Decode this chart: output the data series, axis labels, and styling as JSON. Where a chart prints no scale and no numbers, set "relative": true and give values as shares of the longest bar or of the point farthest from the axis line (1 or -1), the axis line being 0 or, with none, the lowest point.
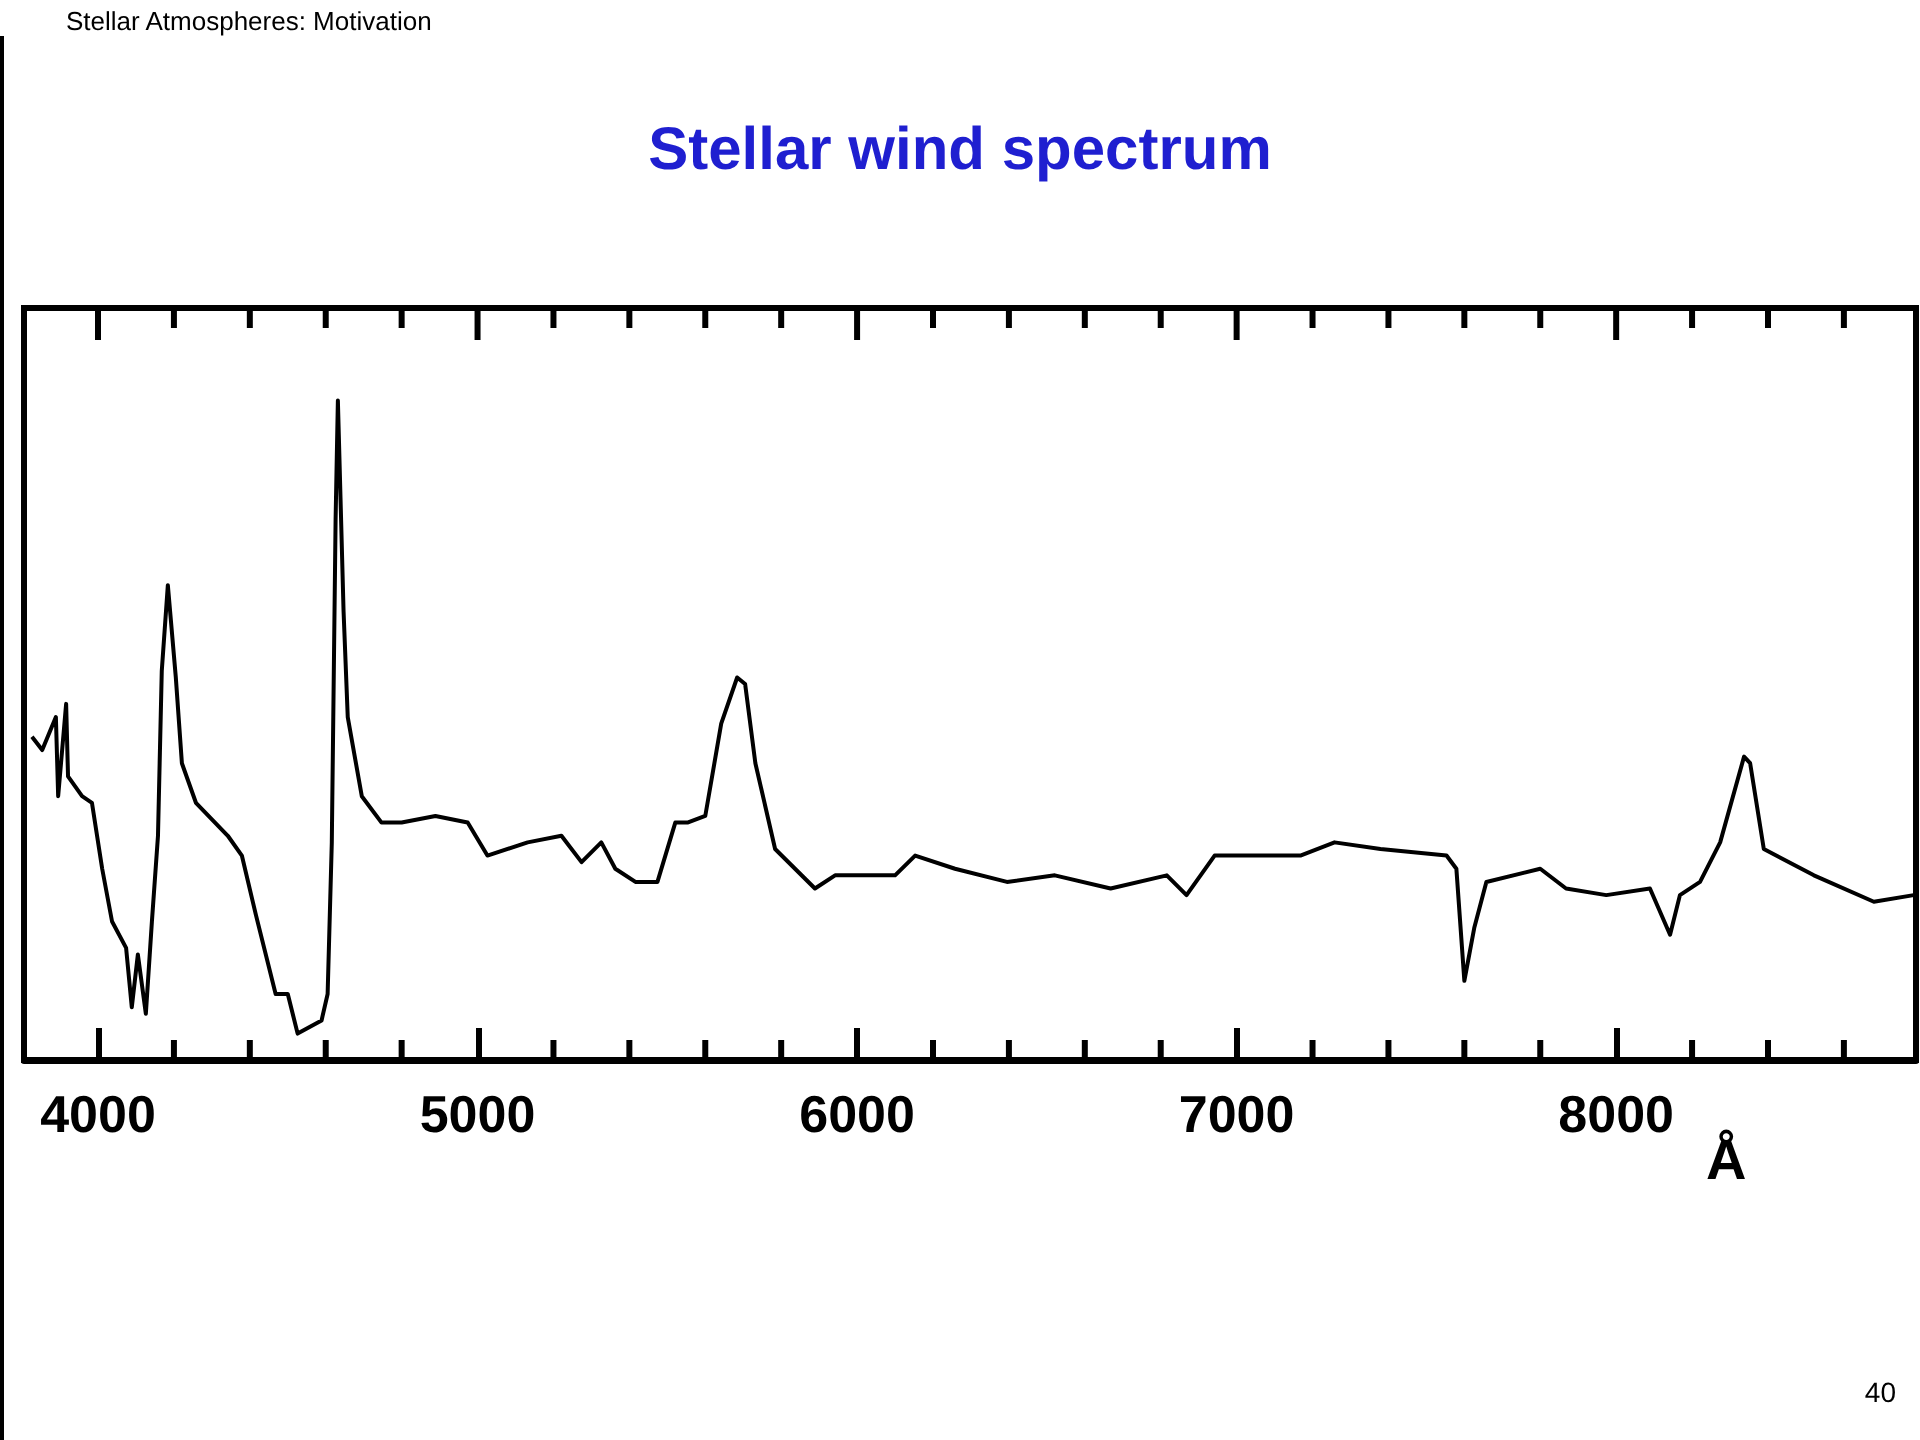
{
  "chart_data": {
    "type": "line",
    "title": "Stellar wind spectrum",
    "xlabel": "Å",
    "relative": true,
    "marker": "none",
    "line_style": "solid",
    "grid": false,
    "annotations": [
      "Stellar Atmospheres:   Motivation",
      "40"
    ],
    "xlim": [
      3805,
      8790
    ],
    "xticks": [
      4000,
      {
        "value": 4200,
        "label": null
      },
      {
        "value": 4400,
        "label": null
      },
      {
        "value": 4600,
        "label": null
      },
      {
        "value": 4800,
        "label": null
      },
      5000,
      {
        "value": 5200,
        "label": null
      },
      {
        "value": 5400,
        "label": null
      },
      {
        "value": 5600,
        "label": null
      },
      {
        "value": 5800,
        "label": null
      },
      6000,
      {
        "value": 6200,
        "label": null
      },
      {
        "value": 6400,
        "label": null
      },
      {
        "value": 6600,
        "label": null
      },
      {
        "value": 6800,
        "label": null
      },
      7000,
      {
        "value": 7200,
        "label": null
      },
      {
        "value": 7400,
        "label": null
      },
      {
        "value": 7600,
        "label": null
      },
      {
        "value": 7800,
        "label": null
      },
      8000,
      {
        "value": 8200,
        "label": null
      },
      {
        "value": 8400,
        "label": null
      },
      {
        "value": 8600,
        "label": null
      }
    ],
    "series": [
      {
        "color": "#000000",
        "x": [
          3826,
          3853,
          3889,
          3895,
          3916,
          3921,
          3958,
          3984,
          4011,
          4037,
          4074,
          4089,
          4105,
          4126,
          4142,
          4158,
          4168,
          4184,
          4205,
          4221,
          4258,
          4342,
          4379,
          4416,
          4468,
          4500,
          4526,
          4589,
          4605,
          4616,
          4626,
          4632,
          4647,
          4658,
          4695,
          4747,
          4800,
          4889,
          4974,
          5026,
          5132,
          5221,
          5274,
          5326,
          5363,
          5416,
          5474,
          5521,
          5553,
          5600,
          5642,
          5684,
          5705,
          5732,
          5784,
          5889,
          5942,
          6100,
          6153,
          6258,
          6395,
          6521,
          6668,
          6816,
          6868,
          6942,
          7168,
          7258,
          7379,
          7553,
          7579,
          7600,
          7626,
          7658,
          7800,
          7868,
          7974,
          8089,
          8142,
          8168,
          8221,
          8274,
          8337,
          8353,
          8389,
          8521,
          8679,
          8784
        ],
        "values": [
          0.49,
          0.47,
          0.52,
          0.4,
          0.54,
          0.43,
          0.4,
          0.39,
          0.29,
          0.21,
          0.17,
          0.08,
          0.16,
          0.07,
          0.21,
          0.34,
          0.59,
          0.72,
          0.58,
          0.45,
          0.39,
          0.34,
          0.31,
          0.22,
          0.1,
          0.1,
          0.04,
          0.06,
          0.1,
          0.33,
          0.82,
          1,
          0.68,
          0.52,
          0.4,
          0.36,
          0.36,
          0.37,
          0.36,
          0.31,
          0.33,
          0.34,
          0.3,
          0.33,
          0.29,
          0.27,
          0.27,
          0.36,
          0.36,
          0.37,
          0.51,
          0.58,
          0.57,
          0.45,
          0.32,
          0.26,
          0.28,
          0.28,
          0.31,
          0.29,
          0.27,
          0.28,
          0.26,
          0.28,
          0.25,
          0.31,
          0.31,
          0.33,
          0.32,
          0.31,
          0.29,
          0.12,
          0.2,
          0.27,
          0.29,
          0.26,
          0.25,
          0.26,
          0.19,
          0.25,
          0.27,
          0.33,
          0.46,
          0.45,
          0.32,
          0.28,
          0.24,
          0.25
        ]
      }
    ]
  }
}
